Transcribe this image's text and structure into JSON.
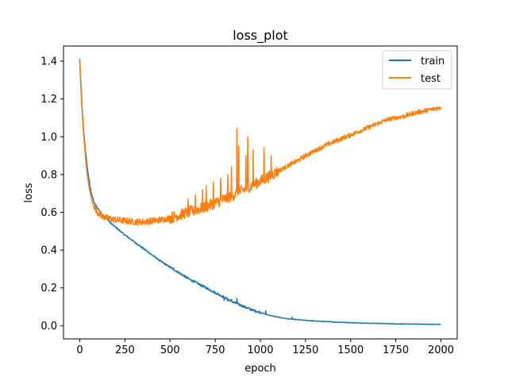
{
  "chart_data": {
    "type": "line",
    "title": "loss_plot",
    "xlabel": "epoch",
    "ylabel": "loss",
    "xlim": [
      -90,
      2090
    ],
    "ylim": [
      -0.07,
      1.48
    ],
    "xticks": [
      0,
      250,
      500,
      750,
      1000,
      1250,
      1500,
      1750,
      2000
    ],
    "yticks": [
      0.0,
      0.2,
      0.4,
      0.6,
      0.8,
      1.0,
      1.2,
      1.4
    ],
    "xtick_labels": [
      "0",
      "250",
      "500",
      "750",
      "1000",
      "1250",
      "1500",
      "1750",
      "2000"
    ],
    "ytick_labels": [
      "0.0",
      "0.2",
      "0.4",
      "0.6",
      "0.8",
      "1.0",
      "1.2",
      "1.4"
    ],
    "grid": false,
    "legend_position": "top-right",
    "series": [
      {
        "name": "train",
        "color": "#1f77b4",
        "points": [
          [
            0,
            1.41
          ],
          [
            10,
            1.2
          ],
          [
            20,
            1.05
          ],
          [
            30,
            0.94
          ],
          [
            40,
            0.85
          ],
          [
            50,
            0.78
          ],
          [
            60,
            0.72
          ],
          [
            70,
            0.68
          ],
          [
            80,
            0.65
          ],
          [
            100,
            0.62
          ],
          [
            125,
            0.59
          ],
          [
            150,
            0.565
          ],
          [
            175,
            0.54
          ],
          [
            200,
            0.52
          ],
          [
            250,
            0.48
          ],
          [
            300,
            0.445
          ],
          [
            350,
            0.41
          ],
          [
            400,
            0.375
          ],
          [
            450,
            0.34
          ],
          [
            500,
            0.31
          ],
          [
            550,
            0.28
          ],
          [
            600,
            0.25
          ],
          [
            650,
            0.225
          ],
          [
            700,
            0.2
          ],
          [
            750,
            0.175
          ],
          [
            800,
            0.15
          ],
          [
            850,
            0.125
          ],
          [
            900,
            0.105
          ],
          [
            950,
            0.085
          ],
          [
            1000,
            0.07
          ],
          [
            1050,
            0.055
          ],
          [
            1100,
            0.045
          ],
          [
            1150,
            0.037
          ],
          [
            1200,
            0.032
          ],
          [
            1300,
            0.025
          ],
          [
            1400,
            0.02
          ],
          [
            1500,
            0.016
          ],
          [
            1600,
            0.013
          ],
          [
            1700,
            0.011
          ],
          [
            1800,
            0.009
          ],
          [
            1900,
            0.008
          ],
          [
            2000,
            0.007
          ]
        ],
        "spikes": [
          [
            800,
            0.135
          ],
          [
            820,
            0.13
          ],
          [
            840,
            0.14
          ],
          [
            870,
            0.145
          ],
          [
            1030,
            0.08
          ],
          [
            1175,
            0.045
          ]
        ]
      },
      {
        "name": "test",
        "color": "#ff7f0e",
        "points": [
          [
            0,
            1.4
          ],
          [
            10,
            1.18
          ],
          [
            20,
            1.03
          ],
          [
            30,
            0.91
          ],
          [
            40,
            0.81
          ],
          [
            50,
            0.74
          ],
          [
            60,
            0.69
          ],
          [
            70,
            0.65
          ],
          [
            80,
            0.63
          ],
          [
            100,
            0.6
          ],
          [
            125,
            0.58
          ],
          [
            150,
            0.57
          ],
          [
            200,
            0.56
          ],
          [
            250,
            0.555
          ],
          [
            300,
            0.55
          ],
          [
            350,
            0.55
          ],
          [
            400,
            0.555
          ],
          [
            450,
            0.56
          ],
          [
            500,
            0.57
          ],
          [
            550,
            0.585
          ],
          [
            600,
            0.6
          ],
          [
            650,
            0.615
          ],
          [
            700,
            0.63
          ],
          [
            750,
            0.65
          ],
          [
            800,
            0.67
          ],
          [
            850,
            0.69
          ],
          [
            900,
            0.715
          ],
          [
            950,
            0.74
          ],
          [
            1000,
            0.765
          ],
          [
            1050,
            0.79
          ],
          [
            1100,
            0.82
          ],
          [
            1150,
            0.845
          ],
          [
            1200,
            0.87
          ],
          [
            1250,
            0.9
          ],
          [
            1300,
            0.925
          ],
          [
            1350,
            0.95
          ],
          [
            1400,
            0.97
          ],
          [
            1450,
            0.99
          ],
          [
            1500,
            1.01
          ],
          [
            1550,
            1.03
          ],
          [
            1600,
            1.05
          ],
          [
            1650,
            1.07
          ],
          [
            1700,
            1.09
          ],
          [
            1750,
            1.1
          ],
          [
            1800,
            1.11
          ],
          [
            1850,
            1.125
          ],
          [
            1900,
            1.135
          ],
          [
            1950,
            1.145
          ],
          [
            2000,
            1.155
          ]
        ],
        "spikes": [
          [
            600,
            0.67
          ],
          [
            640,
            0.69
          ],
          [
            680,
            0.72
          ],
          [
            700,
            0.74
          ],
          [
            740,
            0.76
          ],
          [
            780,
            0.78
          ],
          [
            820,
            0.8
          ],
          [
            840,
            0.84
          ],
          [
            870,
            1.04
          ],
          [
            880,
            0.95
          ],
          [
            920,
            0.9
          ],
          [
            930,
            1.0
          ],
          [
            960,
            0.93
          ],
          [
            1020,
            0.94
          ],
          [
            1060,
            0.9
          ]
        ]
      }
    ]
  }
}
